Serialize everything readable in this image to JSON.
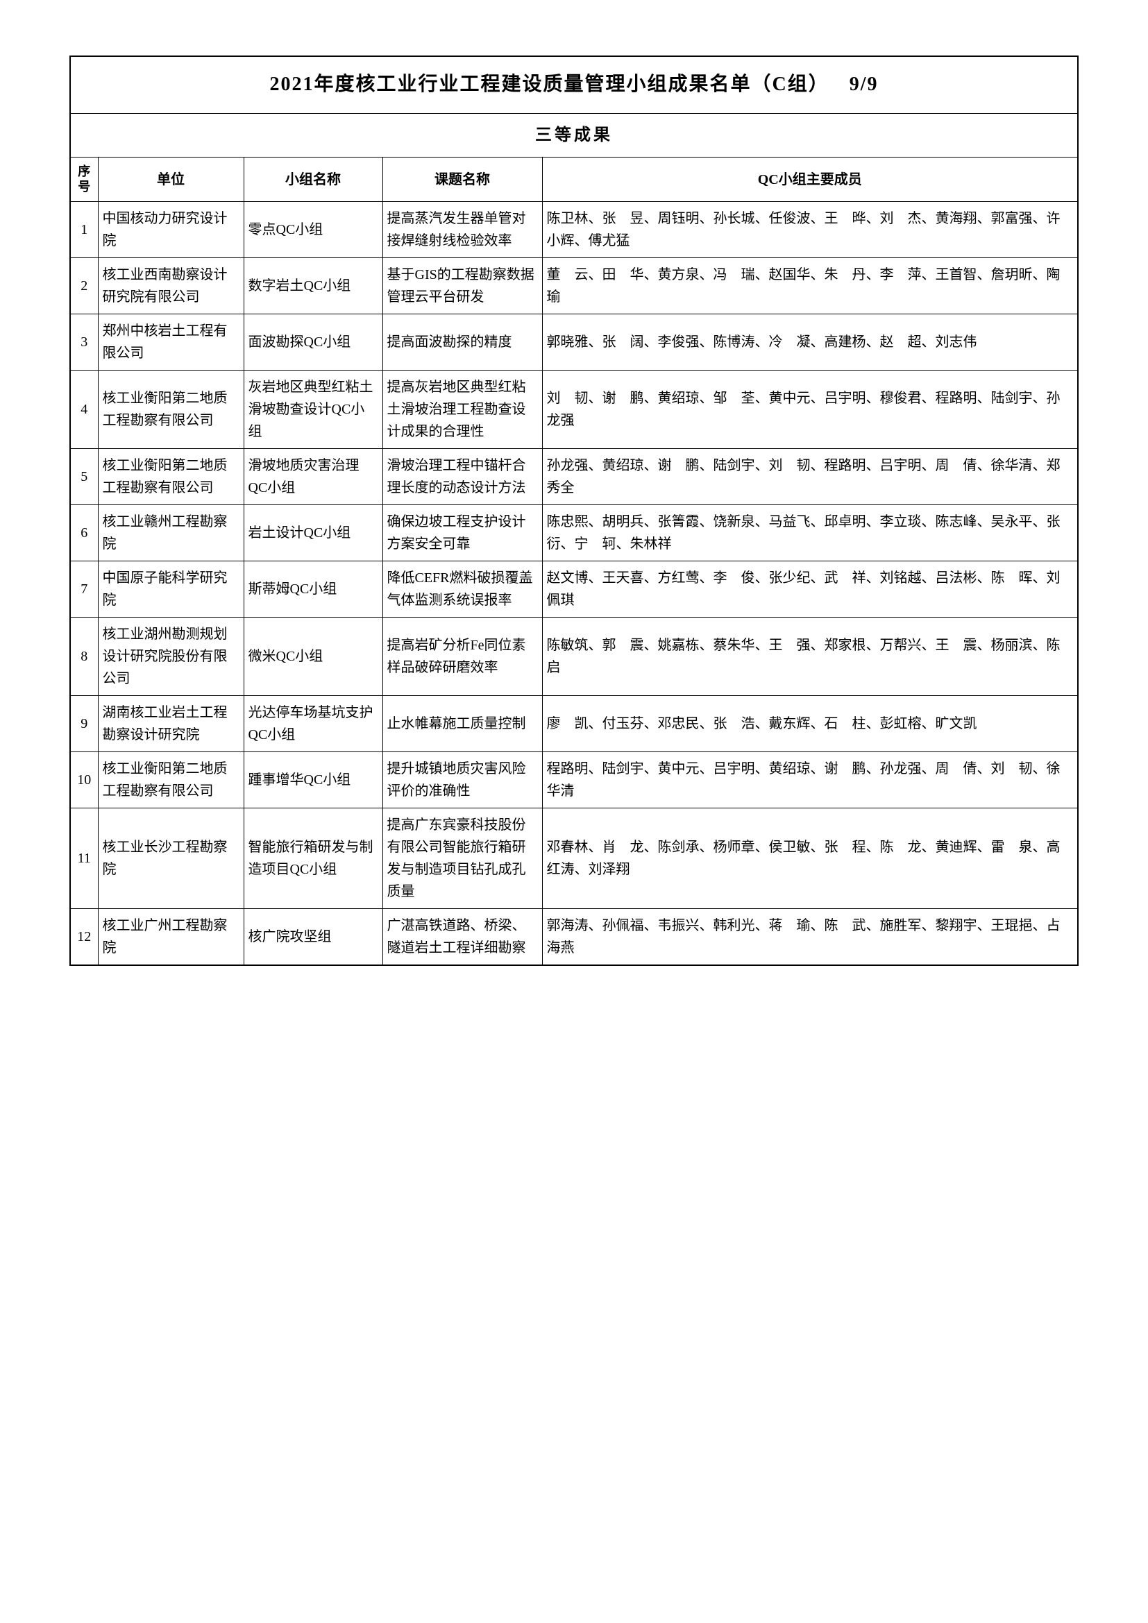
{
  "title": "2021年度核工业行业工程建设质量管理小组成果名单（C组）",
  "page_num": "9/9",
  "subtitle": "三等成果",
  "headers": {
    "seq": "序号",
    "unit": "单位",
    "group": "小组名称",
    "topic": "课题名称",
    "members": "QC小组主要成员"
  },
  "rows": [
    {
      "seq": "1",
      "unit": "中国核动力研究设计院",
      "group": "零点QC小组",
      "topic": "提高蒸汽发生器单管对接焊缝射线检验效率",
      "members": "陈卫林、张　昱、周钰明、孙长城、任俊波、王　晔、刘　杰、黄海翔、郭富强、许小辉、傅尤猛"
    },
    {
      "seq": "2",
      "unit": "核工业西南勘察设计研究院有限公司",
      "group": "数字岩土QC小组",
      "topic": "基于GIS的工程勘察数据管理云平台研发",
      "members": "董　云、田　华、黄方泉、冯　瑞、赵国华、朱　丹、李　萍、王首智、詹玥昕、陶　瑜"
    },
    {
      "seq": "3",
      "unit": "郑州中核岩土工程有限公司",
      "group": "面波勘探QC小组",
      "topic": "提高面波勘探的精度",
      "members": "郭晓雅、张　阔、李俊强、陈博涛、冷　凝、高建杨、赵　超、刘志伟"
    },
    {
      "seq": "4",
      "unit": "核工业衡阳第二地质工程勘察有限公司",
      "group": "灰岩地区典型红粘土滑坡勘查设计QC小组",
      "topic": "提高灰岩地区典型红粘土滑坡治理工程勘查设计成果的合理性",
      "members": "刘　韧、谢　鹏、黄绍琼、邹　荃、黄中元、吕宇明、穆俊君、程路明、陆剑宇、孙龙强"
    },
    {
      "seq": "5",
      "unit": "核工业衡阳第二地质工程勘察有限公司",
      "group": "滑坡地质灾害治理QC小组",
      "topic": "滑坡治理工程中锚杆合理长度的动态设计方法",
      "members": "孙龙强、黄绍琼、谢　鹏、陆剑宇、刘　韧、程路明、吕宇明、周　倩、徐华清、郑秀全"
    },
    {
      "seq": "6",
      "unit": "核工业赣州工程勘察院",
      "group": "岩土设计QC小组",
      "topic": "确保边坡工程支护设计方案安全可靠",
      "members": "陈忠熙、胡明兵、张箐霞、饶新泉、马益飞、邱卓明、李立琰、陈志峰、吴永平、张　衍、宁　轲、朱林祥"
    },
    {
      "seq": "7",
      "unit": "中国原子能科学研究院",
      "group": "斯蒂姆QC小组",
      "topic": "降低CEFR燃料破损覆盖气体监测系统误报率",
      "members": "赵文博、王天喜、方红莺、李　俊、张少纪、武　祥、刘铭越、吕法彬、陈　晖、刘佩琪"
    },
    {
      "seq": "8",
      "unit": "核工业湖州勘测规划设计研究院股份有限公司",
      "group": "微米QC小组",
      "topic": "提高岩矿分析Fe同位素样品破碎研磨效率",
      "members": "陈敏筑、郭　震、姚嘉栋、蔡朱华、王　强、郑家根、万帮兴、王　震、杨丽滨、陈　启"
    },
    {
      "seq": "9",
      "unit": "湖南核工业岩土工程勘察设计研究院",
      "group": "光达停车场基坑支护QC小组",
      "topic": "止水帷幕施工质量控制",
      "members": "廖　凯、付玉芬、邓忠民、张　浩、戴东辉、石　柱、彭虹榕、旷文凯"
    },
    {
      "seq": "10",
      "unit": "核工业衡阳第二地质工程勘察有限公司",
      "group": "踵事增华QC小组",
      "topic": "提升城镇地质灾害风险评价的准确性",
      "members": "程路明、陆剑宇、黄中元、吕宇明、黄绍琼、谢　鹏、孙龙强、周　倩、刘　韧、徐华清"
    },
    {
      "seq": "11",
      "unit": "核工业长沙工程勘察院",
      "group": "智能旅行箱研发与制造项目QC小组",
      "topic": "提高广东宾豪科技股份有限公司智能旅行箱研发与制造项目钻孔成孔质量",
      "members": "邓春林、肖　龙、陈剑承、杨师章、侯卫敏、张　程、陈　龙、黄迪辉、雷　泉、高红涛、刘泽翔"
    },
    {
      "seq": "12",
      "unit": "核工业广州工程勘察院",
      "group": "核广院攻坚组",
      "topic": "广湛高铁道路、桥梁、隧道岩土工程详细勘察",
      "members": "郭海涛、孙佩福、韦振兴、韩利光、蒋　瑜、陈　武、施胜军、黎翔宇、王琨挹、占海燕"
    }
  ],
  "colors": {
    "border": "#000000",
    "background": "#ffffff",
    "text": "#000000"
  },
  "fonts": {
    "title_size": 28,
    "subtitle_size": 24,
    "header_size": 20,
    "body_size": 20
  }
}
